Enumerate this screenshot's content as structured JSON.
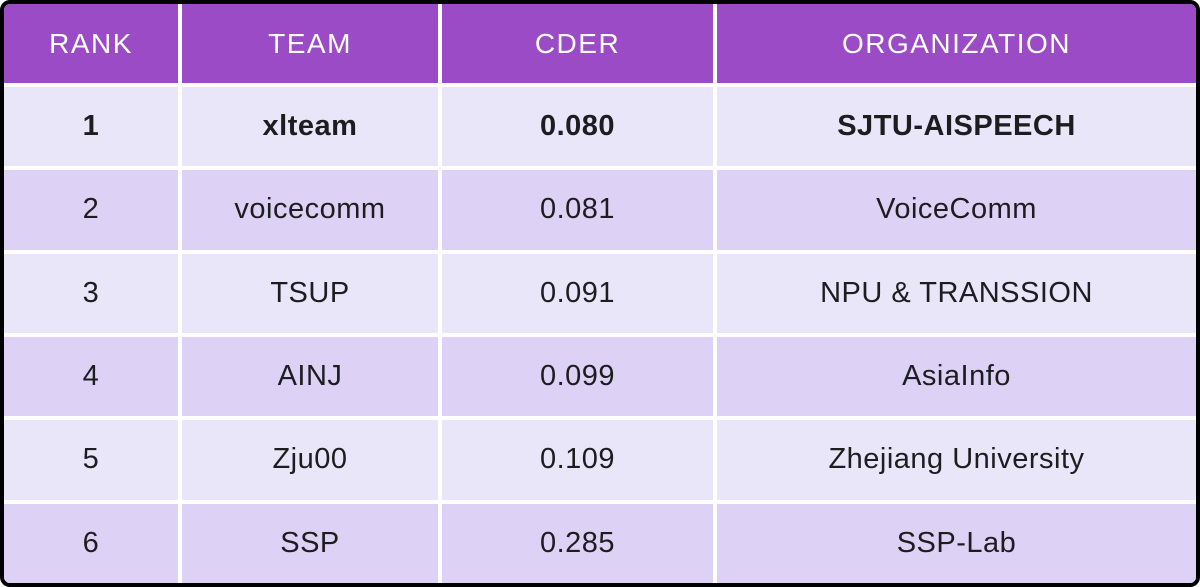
{
  "colors": {
    "header_bg": "#9b4bc5",
    "header_text": "#ffffff",
    "row_light_bg": "#e9e6fa",
    "row_shaded_bg": "#ddd2f6",
    "cell_text": "#1d1d1f",
    "separator": "#ffffff",
    "outer_border": "#000000"
  },
  "table": {
    "columns": [
      {
        "key": "rank",
        "label": "RANK"
      },
      {
        "key": "team",
        "label": "TEAM"
      },
      {
        "key": "cder",
        "label": "CDER"
      },
      {
        "key": "organization",
        "label": "ORGANIZATION"
      }
    ],
    "rows": [
      {
        "rank": "1",
        "team": "xlteam",
        "cder": "0.080",
        "organization": "SJTU-AISPEECH",
        "bold": true,
        "shaded": false
      },
      {
        "rank": "2",
        "team": "voicecomm",
        "cder": "0.081",
        "organization": "VoiceComm",
        "bold": false,
        "shaded": true
      },
      {
        "rank": "3",
        "team": "TSUP",
        "cder": "0.091",
        "organization": "NPU & TRANSSION",
        "bold": false,
        "shaded": false
      },
      {
        "rank": "4",
        "team": "AINJ",
        "cder": "0.099",
        "organization": "AsiaInfo",
        "bold": false,
        "shaded": true
      },
      {
        "rank": "5",
        "team": "Zju00",
        "cder": "0.109",
        "organization": "Zhejiang University",
        "bold": false,
        "shaded": false
      },
      {
        "rank": "6",
        "team": "SSP",
        "cder": "0.285",
        "organization": "SSP-Lab",
        "bold": false,
        "shaded": true
      }
    ]
  },
  "chart_data": {
    "type": "table",
    "columns": [
      "RANK",
      "TEAM",
      "CDER",
      "ORGANIZATION"
    ],
    "rows": [
      [
        "1",
        "xlteam",
        "0.080",
        "SJTU-AISPEECH"
      ],
      [
        "2",
        "voicecomm",
        "0.081",
        "VoiceComm"
      ],
      [
        "3",
        "TSUP",
        "0.091",
        "NPU & TRANSSION"
      ],
      [
        "4",
        "AINJ",
        "0.099",
        "AsiaInfo"
      ],
      [
        "5",
        "Zju00",
        "0.109",
        "Zhejiang University"
      ],
      [
        "6",
        "SSP",
        "0.285",
        "SSP-Lab"
      ]
    ]
  }
}
